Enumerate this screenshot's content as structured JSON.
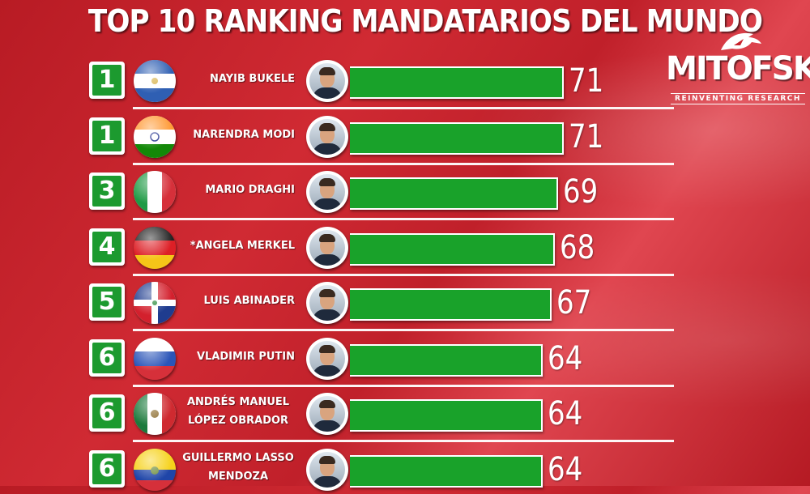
{
  "title": "TOP 10 RANKING MANDATARIOS DEL MUNDO",
  "logo": {
    "name": "MITOFSKY",
    "tagline": "REINVENTING RESEARCH"
  },
  "colors": {
    "background": "#c8232c",
    "bar": "#19a22a",
    "rank_box": "#1c9a2f",
    "text": "#ffffff"
  },
  "chart_data": {
    "type": "bar",
    "orientation": "horizontal",
    "title": "TOP 10 RANKING MANDATARIOS DEL MUNDO",
    "xlim": [
      0,
      71
    ],
    "rows": [
      {
        "rank": "1",
        "name": [
          "NAYIB BUKELE"
        ],
        "value": 71,
        "label": "71",
        "flag": "el-salvador-flag"
      },
      {
        "rank": "1",
        "name": [
          "NARENDRA MODI"
        ],
        "value": 71,
        "label": "71",
        "flag": "india-flag"
      },
      {
        "rank": "3",
        "name": [
          "MARIO DRAGHI"
        ],
        "value": 69,
        "label": "69",
        "flag": "italy-flag"
      },
      {
        "rank": "4",
        "name": [
          "*ANGELA MERKEL"
        ],
        "value": 68,
        "label": "68",
        "flag": "germany-flag"
      },
      {
        "rank": "5",
        "name": [
          "LUIS ABINADER"
        ],
        "value": 67,
        "label": "67",
        "flag": "dominican-republic-flag"
      },
      {
        "rank": "6",
        "name": [
          "VLADIMIR PUTIN"
        ],
        "value": 64,
        "label": "64",
        "flag": "russia-flag"
      },
      {
        "rank": "6",
        "name": [
          "ANDRÉS MANUEL",
          "LÓPEZ OBRADOR"
        ],
        "value": 64,
        "label": "64",
        "flag": "mexico-flag"
      },
      {
        "rank": "6",
        "name": [
          "GUILLERMO LASSO",
          "MENDOZA"
        ],
        "value": 64,
        "label": "64",
        "flag": "ecuador-flag"
      }
    ]
  }
}
